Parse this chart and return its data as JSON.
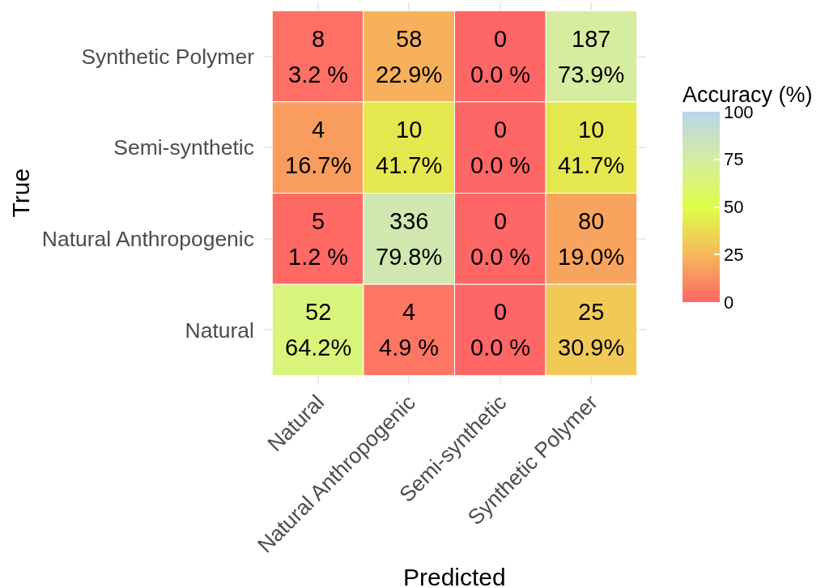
{
  "chart_data": {
    "type": "heatmap",
    "xlabel": "Predicted",
    "ylabel": "True",
    "clabel": "Accuracy (%)",
    "categories": [
      "Natural",
      "Natural Anthropogenic",
      "Semi-synthetic",
      "Synthetic Polymer"
    ],
    "y_categories": [
      "Synthetic Polymer",
      "Semi-synthetic",
      "Natural Anthropogenic",
      "Natural"
    ],
    "cells": [
      [
        3.2,
        22.9,
        0.0,
        73.9
      ],
      [
        16.7,
        41.7,
        0.0,
        41.7
      ],
      [
        1.2,
        79.8,
        0.0,
        19.0
      ],
      [
        64.2,
        4.9,
        0.0,
        30.9
      ]
    ],
    "cell_labels": [
      [
        "8\n3.2 %",
        "58\n22.9%",
        "0\n0.0 %",
        "187\n73.9%"
      ],
      [
        "4\n16.7%",
        "10\n41.7%",
        "0\n0.0 %",
        "10\n41.7%"
      ],
      [
        "5\n1.2 %",
        "336\n79.8%",
        "0\n0.0 %",
        "80\n19.0%"
      ],
      [
        "52\n64.2%",
        "4\n4.9 %",
        "0\n0.0 %",
        "25\n30.9%"
      ]
    ],
    "clim": [
      0,
      100
    ],
    "cticks": [
      0,
      25,
      50,
      75,
      100
    ],
    "grid": true
  }
}
